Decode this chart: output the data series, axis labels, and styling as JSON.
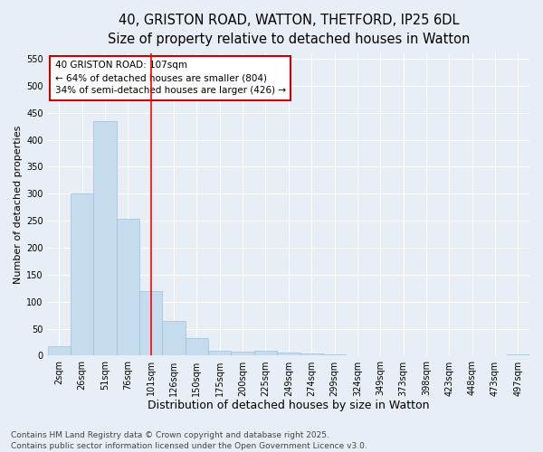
{
  "title_line1": "40, GRISTON ROAD, WATTON, THETFORD, IP25 6DL",
  "title_line2": "Size of property relative to detached houses in Watton",
  "xlabel": "Distribution of detached houses by size in Watton",
  "ylabel": "Number of detached properties",
  "categories": [
    "2sqm",
    "26sqm",
    "51sqm",
    "76sqm",
    "101sqm",
    "126sqm",
    "150sqm",
    "175sqm",
    "200sqm",
    "225sqm",
    "249sqm",
    "274sqm",
    "299sqm",
    "324sqm",
    "349sqm",
    "373sqm",
    "398sqm",
    "423sqm",
    "448sqm",
    "473sqm",
    "497sqm"
  ],
  "values": [
    18,
    300,
    435,
    253,
    120,
    65,
    33,
    10,
    7,
    10,
    5,
    4,
    2,
    1,
    0,
    0,
    0,
    0,
    0,
    0,
    2
  ],
  "bar_color": "#c5dcef",
  "bar_edge_color": "#a0bfd8",
  "bar_edge_width": 0.5,
  "red_line_x": 4.0,
  "ylim": [
    0,
    560
  ],
  "yticks": [
    0,
    50,
    100,
    150,
    200,
    250,
    300,
    350,
    400,
    450,
    500,
    550
  ],
  "annotation_text": "40 GRISTON ROAD: 107sqm\n← 64% of detached houses are smaller (804)\n34% of semi-detached houses are larger (426) →",
  "annotation_box_facecolor": "#ffffff",
  "annotation_box_edgecolor": "#cc0000",
  "footnote1": "Contains HM Land Registry data © Crown copyright and database right 2025.",
  "footnote2": "Contains public sector information licensed under the Open Government Licence v3.0.",
  "background_color": "#e8eef5",
  "grid_color": "#ffffff",
  "title_fontsize": 10.5,
  "subtitle_fontsize": 9.5,
  "ylabel_fontsize": 8,
  "xlabel_fontsize": 9,
  "tick_fontsize": 7,
  "annotation_fontsize": 7.5,
  "footnote_fontsize": 6.5
}
